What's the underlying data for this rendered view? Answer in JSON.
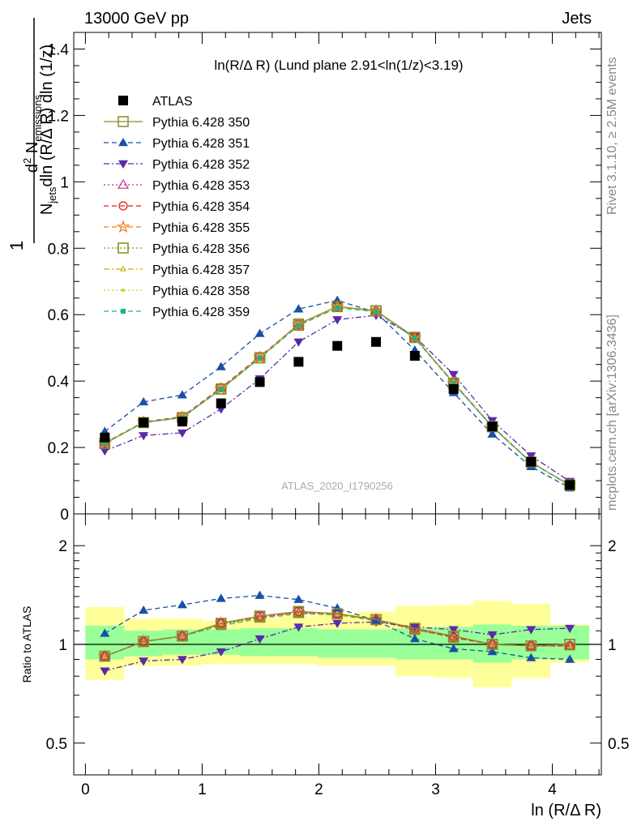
{
  "header": {
    "left": "13000 GeV pp",
    "right": "Jets"
  },
  "side": {
    "rivet": "Rivet 3.1.10, ≥ 2.5M events",
    "mcplots": "mcplots.cern.ch [arXiv:1306.3436]"
  },
  "chart_data": [
    {
      "type": "scatter",
      "panel": "main",
      "title": "ln(R/Δ R) (Lund plane 2.91<ln(1/z)<3.19)",
      "watermark": "ATLAS_2020_I1790256",
      "ylabel": {
        "frac_num_base": "d",
        "frac_num_sup": "2",
        "frac_num_rest_base": " N",
        "frac_num_rest_sub": "emissions",
        "frac_den_base": "N",
        "frac_den_sub": "jets",
        "frac_den_rest": "dln (R/Δ R) dln (1/z)",
        "one": "1"
      },
      "xlim": [
        -0.1,
        4.42
      ],
      "ylim": [
        0,
        1.45
      ],
      "xticks": [
        "0",
        "1",
        "2",
        "3",
        "4"
      ],
      "xtick_values": [
        0,
        1,
        2,
        3,
        4
      ],
      "yticks": [
        "0",
        "0.2",
        "0.4",
        "0.6",
        "0.8",
        "1",
        "1.2",
        "1.4"
      ],
      "ytick_values": [
        0,
        0.2,
        0.4,
        0.6,
        0.8,
        1.0,
        1.2,
        1.4
      ],
      "legend_position": "top-left",
      "x": [
        0.166,
        0.498,
        0.83,
        1.162,
        1.494,
        1.826,
        2.158,
        2.49,
        2.822,
        3.154,
        3.486,
        3.818,
        4.15
      ],
      "series": [
        {
          "name": "ATLAS",
          "color": "#000000",
          "marker": "square-filled",
          "line": "none",
          "values": [
            0.23,
            0.275,
            0.278,
            0.333,
            0.397,
            0.458,
            0.506,
            0.518,
            0.476,
            0.376,
            0.263,
            0.157,
            0.087
          ]
        },
        {
          "name": "Pythia 6.428 350",
          "color": "#8a8a2e",
          "marker": "square-open",
          "line": "solid",
          "values": [
            0.212,
            0.275,
            0.29,
            0.376,
            0.47,
            0.572,
            0.625,
            0.612,
            0.532,
            0.393,
            0.262,
            0.155,
            0.087
          ]
        },
        {
          "name": "Pythia 6.428 351",
          "color": "#1a4fa6",
          "marker": "triangle-up-filled",
          "line": "dashed",
          "values": [
            0.248,
            0.337,
            0.358,
            0.443,
            0.543,
            0.617,
            0.643,
            0.607,
            0.493,
            0.365,
            0.24,
            0.142,
            0.078
          ]
        },
        {
          "name": "Pythia 6.428 352",
          "color": "#5a2aa8",
          "marker": "triangle-down-filled",
          "line": "dashdot",
          "values": [
            0.19,
            0.236,
            0.244,
            0.316,
            0.407,
            0.518,
            0.585,
            0.598,
            0.534,
            0.42,
            0.281,
            0.175,
            0.098
          ]
        },
        {
          "name": "Pythia 6.428 353",
          "color": "#c0308a",
          "marker": "triangle-up-open",
          "line": "dotted",
          "values": [
            0.213,
            0.276,
            0.292,
            0.378,
            0.472,
            0.568,
            0.622,
            0.61,
            0.53,
            0.396,
            0.264,
            0.156,
            0.086
          ]
        },
        {
          "name": "Pythia 6.428 354",
          "color": "#e02020",
          "marker": "circle-open",
          "line": "dashed",
          "values": [
            0.214,
            0.277,
            0.293,
            0.38,
            0.474,
            0.57,
            0.623,
            0.61,
            0.531,
            0.395,
            0.263,
            0.156,
            0.086
          ]
        },
        {
          "name": "Pythia 6.428 355",
          "color": "#f07a18",
          "marker": "star-open",
          "line": "dashed",
          "values": [
            0.213,
            0.276,
            0.291,
            0.377,
            0.471,
            0.569,
            0.624,
            0.611,
            0.53,
            0.394,
            0.262,
            0.155,
            0.086
          ]
        },
        {
          "name": "Pythia 6.428 356",
          "color": "#7f8f1c",
          "marker": "square-open",
          "line": "dotted",
          "values": [
            0.212,
            0.275,
            0.29,
            0.376,
            0.47,
            0.568,
            0.624,
            0.611,
            0.531,
            0.394,
            0.263,
            0.156,
            0.087
          ]
        },
        {
          "name": "Pythia 6.428 357",
          "color": "#d4b20a",
          "marker": "triangle-open-small",
          "line": "dashdot",
          "values": [
            0.213,
            0.276,
            0.291,
            0.376,
            0.471,
            0.569,
            0.623,
            0.61,
            0.53,
            0.394,
            0.262,
            0.155,
            0.086
          ]
        },
        {
          "name": "Pythia 6.428 358",
          "color": "#c4d41a",
          "marker": "dot",
          "line": "dotted",
          "values": [
            0.212,
            0.275,
            0.29,
            0.375,
            0.47,
            0.568,
            0.622,
            0.609,
            0.529,
            0.393,
            0.262,
            0.155,
            0.086
          ]
        },
        {
          "name": "Pythia 6.428 359",
          "color": "#20b088",
          "marker": "square-small-filled",
          "line": "dashed",
          "values": [
            0.212,
            0.275,
            0.29,
            0.375,
            0.469,
            0.567,
            0.621,
            0.609,
            0.529,
            0.393,
            0.262,
            0.155,
            0.086
          ]
        }
      ]
    },
    {
      "type": "scatter",
      "panel": "ratio",
      "xlabel": "ln (R/Δ R)",
      "ylabel": "Ratio to ATLAS",
      "log_y": true,
      "ylim": [
        0.4,
        2.5
      ],
      "yticks": [
        "0.5",
        "1",
        "2"
      ],
      "ytick_values": [
        0.5,
        1,
        2
      ],
      "reference_line": 1,
      "band_edges": [
        0.0,
        0.332,
        0.664,
        0.996,
        1.328,
        1.66,
        1.992,
        2.324,
        2.656,
        2.988,
        3.32,
        3.652,
        3.984,
        4.316
      ],
      "band_inner_low": [
        0.9,
        0.92,
        0.93,
        0.93,
        0.92,
        0.92,
        0.91,
        0.91,
        0.9,
        0.9,
        0.88,
        0.9,
        0.9
      ],
      "band_inner_high": [
        1.14,
        1.1,
        1.11,
        1.11,
        1.12,
        1.12,
        1.11,
        1.11,
        1.12,
        1.13,
        1.15,
        1.14,
        1.14
      ],
      "band_outer_low": [
        0.78,
        0.86,
        0.86,
        0.87,
        0.87,
        0.87,
        0.86,
        0.86,
        0.8,
        0.79,
        0.74,
        0.79,
        0.88
      ],
      "band_outer_high": [
        1.3,
        1.2,
        1.2,
        1.18,
        1.2,
        1.22,
        1.24,
        1.26,
        1.31,
        1.32,
        1.36,
        1.33,
        1.15
      ],
      "series": [
        {
          "name": "Pythia 6.428 350",
          "values": [
            0.92,
            1.02,
            1.06,
            1.16,
            1.22,
            1.26,
            1.24,
            1.19,
            1.12,
            1.06,
            1.0,
            0.99,
            1.0
          ]
        },
        {
          "name": "Pythia 6.428 351",
          "values": [
            1.08,
            1.27,
            1.32,
            1.38,
            1.41,
            1.37,
            1.29,
            1.18,
            1.04,
            0.97,
            0.95,
            0.91,
            0.9
          ]
        },
        {
          "name": "Pythia 6.428 352",
          "values": [
            0.83,
            0.89,
            0.9,
            0.95,
            1.04,
            1.13,
            1.16,
            1.17,
            1.13,
            1.11,
            1.07,
            1.11,
            1.12
          ]
        },
        {
          "name": "Pythia 6.428 353",
          "values": [
            0.92,
            1.02,
            1.06,
            1.16,
            1.21,
            1.25,
            1.24,
            1.19,
            1.11,
            1.06,
            1.0,
            0.99,
            0.99
          ]
        },
        {
          "name": "Pythia 6.428 354",
          "values": [
            0.92,
            1.02,
            1.06,
            1.16,
            1.22,
            1.26,
            1.24,
            1.19,
            1.12,
            1.05,
            1.0,
            0.99,
            0.99
          ]
        },
        {
          "name": "Pythia 6.428 355",
          "values": [
            0.92,
            1.02,
            1.06,
            1.16,
            1.21,
            1.25,
            1.24,
            1.19,
            1.11,
            1.05,
            1.0,
            0.99,
            0.99
          ]
        },
        {
          "name": "Pythia 6.428 356",
          "values": [
            0.92,
            1.02,
            1.06,
            1.15,
            1.21,
            1.25,
            1.24,
            1.19,
            1.11,
            1.05,
            1.0,
            0.99,
            1.0
          ]
        },
        {
          "name": "Pythia 6.428 357",
          "values": [
            0.92,
            1.02,
            1.06,
            1.15,
            1.21,
            1.25,
            1.23,
            1.19,
            1.11,
            1.05,
            1.0,
            0.99,
            0.99
          ]
        },
        {
          "name": "Pythia 6.428 358",
          "values": [
            0.92,
            1.02,
            1.06,
            1.15,
            1.2,
            1.24,
            1.23,
            1.18,
            1.11,
            1.05,
            1.0,
            0.99,
            0.99
          ]
        },
        {
          "name": "Pythia 6.428 359",
          "values": [
            0.92,
            1.02,
            1.06,
            1.14,
            1.2,
            1.24,
            1.23,
            1.18,
            1.11,
            1.05,
            1.0,
            0.99,
            0.99
          ]
        }
      ]
    }
  ]
}
